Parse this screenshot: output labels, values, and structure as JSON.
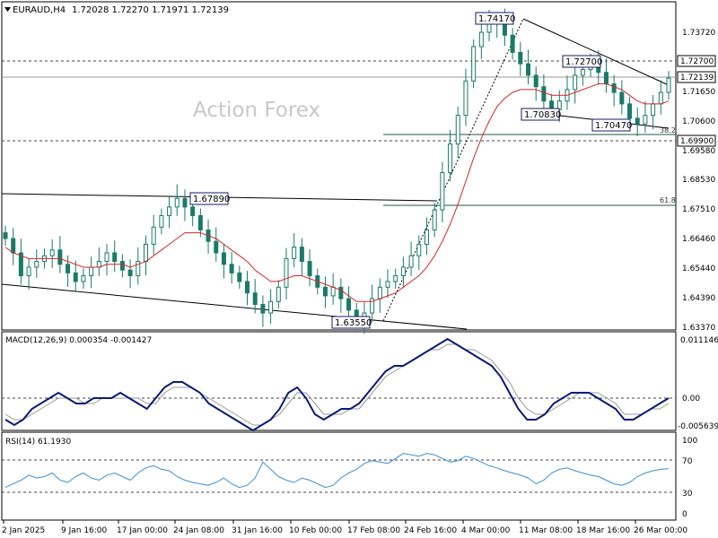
{
  "header": {
    "symbol": "EURAUD,H4",
    "ohlc": "1.72028 1.72270 1.71971 1.72139"
  },
  "watermark": "Action Forex",
  "colors": {
    "bull_candle": "#1a7a6a",
    "bear_candle": "#1a7a6a",
    "sma": "#d62728",
    "macd_main": "#0a1a7a",
    "macd_signal": "#9a9a9a",
    "rsi": "#3a8fd6",
    "fib_line": "#1a5a4a"
  },
  "chart_data": [
    {
      "type": "line",
      "title": "",
      "chart_type": "candlestick",
      "ylim": [
        1.6337,
        1.7417
      ],
      "y_ticks": [
        "1.73720",
        "1.72700",
        "1.72139",
        "1.71650",
        "1.70600",
        "1.69900",
        "1.69580",
        "1.68530",
        "1.67510",
        "1.66460",
        "1.65440",
        "1.64390",
        "1.63370"
      ],
      "x_ticks": [
        "2 Jan 2025",
        "9 Jan 16:00",
        "17 Jan 00:00",
        "24 Jan 08:00",
        "31 Jan 16:00",
        "10 Feb 00:00",
        "17 Feb 08:00",
        "24 Feb 16:00",
        "4 Mar 00:00",
        "11 Mar 08:00",
        "18 Mar 16:00",
        "26 Mar 00:00"
      ],
      "price_tags": [
        "1.72700",
        "1.72139",
        "1.69900"
      ],
      "point_labels": [
        "1.74170",
        "1.72700",
        "1.70830",
        "1.70470",
        "1.67890",
        "1.63550"
      ],
      "fib_labels": [
        "38.2",
        "61.8"
      ],
      "fib_levels": [
        1.699,
        1.6751
      ],
      "series": [
        {
          "close": [
            1.665,
            1.66,
            1.652,
            1.655,
            1.657,
            1.659,
            1.661,
            1.656,
            1.653,
            1.65,
            1.652,
            1.655,
            1.657,
            1.66,
            1.657,
            1.654,
            1.652,
            1.657,
            1.663,
            1.669,
            1.673,
            1.676,
            1.679,
            1.676,
            1.673,
            1.668,
            1.664,
            1.66,
            1.656,
            1.653,
            1.65,
            1.646,
            1.642,
            1.639,
            1.643,
            1.648,
            1.658,
            1.662,
            1.657,
            1.652,
            1.648,
            1.645,
            1.648,
            1.644,
            1.64,
            1.636,
            1.639,
            1.644,
            1.648,
            1.65,
            1.652,
            1.655,
            1.659,
            1.663,
            1.668,
            1.675,
            1.688,
            1.698,
            1.708,
            1.72,
            1.732,
            1.737,
            1.74,
            1.741,
            1.736,
            1.73,
            1.726,
            1.722,
            1.718,
            1.713,
            1.71,
            1.713,
            1.717,
            1.722,
            1.724,
            1.727,
            1.723,
            1.719,
            1.716,
            1.712,
            1.707,
            1.705,
            1.708,
            1.712,
            1.716,
            1.721
          ]
        },
        {
          "name": "",
          "values": [
            1.662,
            1.66,
            1.659,
            1.658,
            1.658,
            1.658,
            1.658,
            1.658,
            1.657,
            1.656,
            1.655,
            1.655,
            1.655,
            1.656,
            1.656,
            1.656,
            1.655,
            1.656,
            1.657,
            1.659,
            1.661,
            1.663,
            1.665,
            1.667,
            1.667,
            1.667,
            1.666,
            1.665,
            1.663,
            1.661,
            1.659,
            1.657,
            1.654,
            1.652,
            1.65,
            1.65,
            1.651,
            1.652,
            1.652,
            1.651,
            1.65,
            1.649,
            1.648,
            1.647,
            1.645,
            1.643,
            1.643,
            1.643,
            1.644,
            1.645,
            1.646,
            1.648,
            1.65,
            1.652,
            1.655,
            1.659,
            1.664,
            1.67,
            1.677,
            1.685,
            1.693,
            1.7,
            1.706,
            1.711,
            1.714,
            1.716,
            1.717,
            1.717,
            1.717,
            1.716,
            1.715,
            1.715,
            1.715,
            1.716,
            1.717,
            1.718,
            1.719,
            1.719,
            1.718,
            1.717,
            1.715,
            1.713,
            1.712,
            1.712,
            1.712,
            1.713
          ]
        }
      ]
    },
    {
      "type": "line",
      "title": "",
      "label": "MACD(12,26,9) 0.000354 -0.001427",
      "ylim": [
        -0.005639,
        0.011146
      ],
      "y_ticks": [
        "0.011146",
        "0.00",
        "-0.005639"
      ],
      "series": [
        {
          "name": "",
          "values": [
            -0.004,
            -0.005,
            -0.004,
            -0.002,
            -0.001,
            0.0,
            0.001,
            0.0,
            -0.001,
            -0.001,
            0.0,
            0.0,
            0.0,
            0.001,
            0.0,
            -0.001,
            -0.002,
            0.0,
            0.002,
            0.003,
            0.003,
            0.002,
            0.001,
            -0.001,
            -0.002,
            -0.003,
            -0.004,
            -0.005,
            -0.006,
            -0.005,
            -0.004,
            -0.002,
            0.001,
            0.002,
            0.0,
            -0.003,
            -0.004,
            -0.003,
            -0.002,
            -0.002,
            -0.001,
            0.001,
            0.003,
            0.005,
            0.006,
            0.006,
            0.007,
            0.008,
            0.009,
            0.01,
            0.011,
            0.01,
            0.009,
            0.008,
            0.007,
            0.006,
            0.004,
            0.001,
            -0.002,
            -0.004,
            -0.004,
            -0.003,
            -0.001,
            0.0,
            0.001,
            0.001,
            0.001,
            0.0,
            -0.001,
            -0.002,
            -0.004,
            -0.004,
            -0.003,
            -0.002,
            -0.001,
            0.0
          ]
        },
        {
          "name": "",
          "values": [
            -0.003,
            -0.004,
            -0.004,
            -0.003,
            -0.002,
            -0.001,
            0.0,
            0.0,
            0.0,
            -0.001,
            -0.001,
            0.0,
            0.0,
            0.0,
            0.0,
            0.0,
            -0.001,
            -0.001,
            0.001,
            0.002,
            0.002,
            0.002,
            0.001,
            0.0,
            -0.001,
            -0.002,
            -0.003,
            -0.004,
            -0.005,
            -0.005,
            -0.004,
            -0.003,
            -0.001,
            0.001,
            0.001,
            -0.001,
            -0.003,
            -0.003,
            -0.003,
            -0.002,
            -0.002,
            0.0,
            0.002,
            0.004,
            0.005,
            0.006,
            0.007,
            0.008,
            0.009,
            0.009,
            0.01,
            0.01,
            0.009,
            0.009,
            0.008,
            0.007,
            0.005,
            0.003,
            0.0,
            -0.002,
            -0.003,
            -0.003,
            -0.002,
            -0.001,
            0.0,
            0.001,
            0.001,
            0.001,
            0.0,
            -0.001,
            -0.003,
            -0.003,
            -0.003,
            -0.002,
            -0.002,
            -0.001
          ]
        }
      ]
    },
    {
      "type": "line",
      "title": "",
      "label": "RSI(14) 61.1930",
      "ylim": [
        0,
        100
      ],
      "y_ticks": [
        "100",
        "70",
        "30",
        "0"
      ],
      "series": [
        {
          "name": "",
          "values": [
            35,
            40,
            45,
            52,
            48,
            50,
            55,
            45,
            42,
            50,
            55,
            48,
            45,
            52,
            55,
            50,
            45,
            55,
            62,
            65,
            60,
            58,
            50,
            45,
            42,
            40,
            38,
            42,
            48,
            40,
            35,
            38,
            48,
            70,
            60,
            50,
            45,
            42,
            48,
            45,
            40,
            35,
            38,
            48,
            55,
            60,
            68,
            72,
            70,
            68,
            75,
            82,
            80,
            78,
            82,
            80,
            75,
            70,
            72,
            78,
            75,
            70,
            65,
            62,
            58,
            55,
            52,
            48,
            40,
            45,
            55,
            60,
            62,
            58,
            55,
            52,
            50,
            45,
            40,
            38,
            42,
            50,
            55,
            58,
            60,
            61
          ]
        }
      ]
    }
  ]
}
